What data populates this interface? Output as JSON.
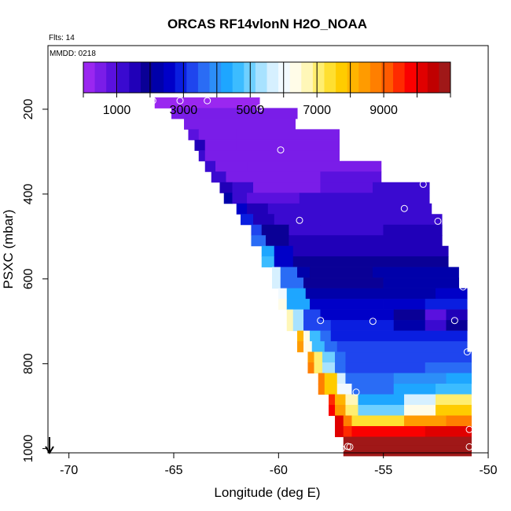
{
  "chart_data": {
    "type": "heatmap",
    "title": "ORCAS RF14vlonN H2O_NOAA",
    "flights_label": "Flts: 14",
    "date_label": "MMDD: 0218",
    "xlabel": "Longitude (deg E)",
    "ylabel": "PSXC (mbar)",
    "xlim": [
      -71,
      -50
    ],
    "ylim": [
      1010,
      50
    ],
    "x_ticks": [
      -70,
      -65,
      -60,
      -55,
      -50
    ],
    "y_ticks": [
      200,
      400,
      600,
      800,
      1000
    ],
    "colorbar": {
      "range": [
        0,
        11000
      ],
      "tick_values": [
        1000,
        3000,
        5000,
        7000,
        9000
      ],
      "tick_labels": [
        "1000",
        "3000",
        "5000",
        "7000",
        "9000"
      ],
      "colors": [
        "#9a27f0",
        "#7a1de8",
        "#5a11de",
        "#3a0ad0",
        "#2000b8",
        "#0a0096",
        "#0000aa",
        "#0000c8",
        "#0a1ee0",
        "#1f45ee",
        "#2a6cf5",
        "#2c8ef8",
        "#1ea6ff",
        "#3cbcff",
        "#6fd0ff",
        "#a8e2ff",
        "#d6f0ff",
        "#f2faff",
        "#fffce8",
        "#fff7b8",
        "#ffee70",
        "#ffdf30",
        "#ffcc00",
        "#ffb400",
        "#ff9b00",
        "#ff7f00",
        "#ff5a00",
        "#ff2a00",
        "#fa0000",
        "#e00000",
        "#c00000",
        "#a01818"
      ]
    },
    "pressure_bins": [
      175,
      200,
      225,
      250,
      275,
      300,
      325,
      350,
      375,
      400,
      425,
      450,
      475,
      500,
      525,
      550,
      575,
      600,
      625,
      650,
      675,
      700,
      725,
      750,
      775,
      800,
      825,
      850,
      875,
      900,
      925,
      950,
      975,
      1000
    ],
    "rows": [
      {
        "p": 185,
        "lon_start": -65.9,
        "lon_end": -60.9,
        "segments": [
          {
            "to": -60.9,
            "value": 300
          }
        ]
      },
      {
        "p": 210,
        "lon_start": -65.1,
        "lon_end": -59.1,
        "segments": [
          {
            "to": -63.8,
            "value": 450
          },
          {
            "to": -59.1,
            "value": 380
          }
        ]
      },
      {
        "p": 235,
        "lon_start": -64.5,
        "lon_end": -59.2,
        "segments": [
          {
            "to": -64.0,
            "value": 500
          },
          {
            "to": -59.2,
            "value": 420
          }
        ]
      },
      {
        "p": 260,
        "lon_start": -64.3,
        "lon_end": -57.1,
        "segments": [
          {
            "to": -63.8,
            "value": 750
          },
          {
            "to": -62.0,
            "value": 480
          },
          {
            "to": -57.1,
            "value": 520
          }
        ]
      },
      {
        "p": 285,
        "lon_start": -64.0,
        "lon_end": -57.1,
        "segments": [
          {
            "to": -63.5,
            "value": 1400
          },
          {
            "to": -62.0,
            "value": 600
          },
          {
            "to": -57.1,
            "value": 500
          }
        ]
      },
      {
        "p": 310,
        "lon_start": -63.8,
        "lon_end": -57.1,
        "segments": [
          {
            "to": -63.5,
            "value": 1300
          },
          {
            "to": -57.1,
            "value": 500
          }
        ]
      },
      {
        "p": 335,
        "lon_start": -63.5,
        "lon_end": -55.1,
        "segments": [
          {
            "to": -63.0,
            "value": 1200
          },
          {
            "to": -61.5,
            "value": 550
          },
          {
            "to": -55.1,
            "value": 650
          }
        ]
      },
      {
        "p": 360,
        "lon_start": -63.2,
        "lon_end": -55.1,
        "segments": [
          {
            "to": -62.5,
            "value": 1100
          },
          {
            "to": -58.0,
            "value": 600
          },
          {
            "to": -55.1,
            "value": 750
          }
        ]
      },
      {
        "p": 385,
        "lon_start": -62.8,
        "lon_end": -52.8,
        "segments": [
          {
            "to": -62.2,
            "value": 1700
          },
          {
            "to": -61.2,
            "value": 1150
          },
          {
            "to": -58.0,
            "value": 650
          },
          {
            "to": -55.5,
            "value": 750
          },
          {
            "to": -52.8,
            "value": 1200
          }
        ]
      },
      {
        "p": 410,
        "lon_start": -62.6,
        "lon_end": -52.8,
        "segments": [
          {
            "to": -62.2,
            "value": 2200
          },
          {
            "to": -61.5,
            "value": 1250
          },
          {
            "to": -59.0,
            "value": 750
          },
          {
            "to": -54.0,
            "value": 1200
          },
          {
            "to": -52.8,
            "value": 1300
          }
        ]
      },
      {
        "p": 435,
        "lon_start": -62.0,
        "lon_end": -52.7,
        "segments": [
          {
            "to": -61.5,
            "value": 2500
          },
          {
            "to": -60.5,
            "value": 1400
          },
          {
            "to": -57.0,
            "value": 1250
          },
          {
            "to": -52.7,
            "value": 1150
          }
        ]
      },
      {
        "p": 460,
        "lon_start": -61.8,
        "lon_end": -52.2,
        "segments": [
          {
            "to": -61.2,
            "value": 2900
          },
          {
            "to": -60.2,
            "value": 1450
          },
          {
            "to": -52.2,
            "value": 1250
          }
        ]
      },
      {
        "p": 485,
        "lon_start": -61.3,
        "lon_end": -52.2,
        "segments": [
          {
            "to": -60.8,
            "value": 3400
          },
          {
            "to": -59.5,
            "value": 1900
          },
          {
            "to": -58.0,
            "value": 1300
          },
          {
            "to": -55.0,
            "value": 1350
          },
          {
            "to": -52.2,
            "value": 1600
          }
        ]
      },
      {
        "p": 510,
        "lon_start": -61.3,
        "lon_end": -52.2,
        "segments": [
          {
            "to": -60.6,
            "value": 3600
          },
          {
            "to": -59.5,
            "value": 1900
          },
          {
            "to": -52.2,
            "value": 1500
          }
        ]
      },
      {
        "p": 535,
        "lon_start": -60.8,
        "lon_end": -51.9,
        "segments": [
          {
            "to": -60.2,
            "value": 4400
          },
          {
            "to": -59.3,
            "value": 2600
          },
          {
            "to": -51.9,
            "value": 1700
          }
        ]
      },
      {
        "p": 560,
        "lon_start": -60.8,
        "lon_end": -51.9,
        "segments": [
          {
            "to": -60.2,
            "value": 4700
          },
          {
            "to": -59.3,
            "value": 2700
          },
          {
            "to": -51.9,
            "value": 1800
          }
        ]
      },
      {
        "p": 585,
        "lon_start": -60.3,
        "lon_end": -51.4,
        "segments": [
          {
            "to": -59.9,
            "value": 5600
          },
          {
            "to": -59.1,
            "value": 3600
          },
          {
            "to": -58.5,
            "value": 2200
          },
          {
            "to": -55.5,
            "value": 1950
          },
          {
            "to": -51.4,
            "value": 2100
          }
        ]
      },
      {
        "p": 610,
        "lon_start": -60.3,
        "lon_end": -51.4,
        "segments": [
          {
            "to": -59.9,
            "value": 5800
          },
          {
            "to": -58.8,
            "value": 3700
          },
          {
            "to": -55.0,
            "value": 2050
          },
          {
            "to": -51.4,
            "value": 2300
          }
        ]
      },
      {
        "p": 635,
        "lon_start": -60.0,
        "lon_end": -51.0,
        "segments": [
          {
            "to": -59.6,
            "value": 6000
          },
          {
            "to": -58.7,
            "value": 4300
          },
          {
            "to": -55.5,
            "value": 2250
          },
          {
            "to": -52.5,
            "value": 2400
          },
          {
            "to": -51.0,
            "value": 2700
          }
        ]
      },
      {
        "p": 660,
        "lon_start": -60.0,
        "lon_end": -51.0,
        "segments": [
          {
            "to": -59.6,
            "value": 6400
          },
          {
            "to": -58.5,
            "value": 4200
          },
          {
            "to": -55.0,
            "value": 2500
          },
          {
            "to": -53.0,
            "value": 2700
          },
          {
            "to": -51.0,
            "value": 2900
          }
        ]
      },
      {
        "p": 685,
        "lon_start": -59.6,
        "lon_end": -51.0,
        "segments": [
          {
            "to": -59.3,
            "value": 6700
          },
          {
            "to": -58.8,
            "value": 5200
          },
          {
            "to": -58.0,
            "value": 3300
          },
          {
            "to": -54.5,
            "value": 2600
          },
          {
            "to": -53.0,
            "value": 2000
          },
          {
            "to": -52.0,
            "value": 1000
          },
          {
            "to": -51.0,
            "value": 1600
          }
        ]
      },
      {
        "p": 710,
        "lon_start": -59.6,
        "lon_end": -51.0,
        "segments": [
          {
            "to": -59.3,
            "value": 6800
          },
          {
            "to": -58.8,
            "value": 5200
          },
          {
            "to": -57.5,
            "value": 3400
          },
          {
            "to": -54.5,
            "value": 2800
          },
          {
            "to": -53.0,
            "value": 2200
          },
          {
            "to": -52.0,
            "value": 1100
          },
          {
            "to": -51.0,
            "value": 1800
          }
        ]
      },
      {
        "p": 735,
        "lon_start": -59.1,
        "lon_end": -51.0,
        "segments": [
          {
            "to": -58.8,
            "value": 8100
          },
          {
            "to": -58.5,
            "value": 6300
          },
          {
            "to": -58.0,
            "value": 4600
          },
          {
            "to": -57.5,
            "value": 3500
          },
          {
            "to": -51.0,
            "value": 3000
          }
        ]
      },
      {
        "p": 760,
        "lon_start": -59.1,
        "lon_end": -51.0,
        "segments": [
          {
            "to": -58.8,
            "value": 8300
          },
          {
            "to": -58.4,
            "value": 6500
          },
          {
            "to": -57.8,
            "value": 4700
          },
          {
            "to": -57.2,
            "value": 3600
          },
          {
            "to": -51.0,
            "value": 3100
          }
        ]
      },
      {
        "p": 785,
        "lon_start": -58.6,
        "lon_end": -50.8,
        "segments": [
          {
            "to": -58.3,
            "value": 8400
          },
          {
            "to": -57.9,
            "value": 7000
          },
          {
            "to": -57.3,
            "value": 4900
          },
          {
            "to": -56.8,
            "value": 3600
          },
          {
            "to": -50.8,
            "value": 3100
          }
        ]
      },
      {
        "p": 810,
        "lon_start": -58.6,
        "lon_end": -50.8,
        "segments": [
          {
            "to": -58.3,
            "value": 8600
          },
          {
            "to": -57.9,
            "value": 7200
          },
          {
            "to": -57.3,
            "value": 5200
          },
          {
            "to": -56.8,
            "value": 3700
          },
          {
            "to": -53.0,
            "value": 3300
          },
          {
            "to": -50.8,
            "value": 3500
          }
        ]
      },
      {
        "p": 835,
        "lon_start": -58.1,
        "lon_end": -50.8,
        "segments": [
          {
            "to": -57.8,
            "value": 8800
          },
          {
            "to": -57.2,
            "value": 7600
          },
          {
            "to": -56.8,
            "value": 5600
          },
          {
            "to": -54.5,
            "value": 3500
          },
          {
            "to": -52.0,
            "value": 3800
          },
          {
            "to": -50.8,
            "value": 4200
          }
        ]
      },
      {
        "p": 860,
        "lon_start": -58.1,
        "lon_end": -50.8,
        "segments": [
          {
            "to": -57.8,
            "value": 8900
          },
          {
            "to": -57.2,
            "value": 7800
          },
          {
            "to": -56.5,
            "value": 6000
          },
          {
            "to": -54.5,
            "value": 3700
          },
          {
            "to": -52.5,
            "value": 4300
          },
          {
            "to": -50.8,
            "value": 4800
          }
        ]
      },
      {
        "p": 885,
        "lon_start": -57.6,
        "lon_end": -50.8,
        "segments": [
          {
            "to": -57.3,
            "value": 9600
          },
          {
            "to": -56.8,
            "value": 8200
          },
          {
            "to": -56.2,
            "value": 6600
          },
          {
            "to": -54.0,
            "value": 4200
          },
          {
            "to": -52.5,
            "value": 5800
          },
          {
            "to": -50.8,
            "value": 7200
          }
        ]
      },
      {
        "p": 910,
        "lon_start": -57.6,
        "lon_end": -50.8,
        "segments": [
          {
            "to": -57.3,
            "value": 9800
          },
          {
            "to": -56.8,
            "value": 8400
          },
          {
            "to": -56.2,
            "value": 6900
          },
          {
            "to": -54.0,
            "value": 5000
          },
          {
            "to": -52.5,
            "value": 6200
          },
          {
            "to": -50.8,
            "value": 7600
          }
        ]
      },
      {
        "p": 935,
        "lon_start": -57.3,
        "lon_end": -50.8,
        "segments": [
          {
            "to": -56.9,
            "value": 10000
          },
          {
            "to": -56.5,
            "value": 8600
          },
          {
            "to": -54.0,
            "value": 7500
          },
          {
            "to": -52.0,
            "value": 8300
          },
          {
            "to": -50.8,
            "value": 8700
          }
        ]
      },
      {
        "p": 960,
        "lon_start": -57.3,
        "lon_end": -50.8,
        "segments": [
          {
            "to": -56.9,
            "value": 10100
          },
          {
            "to": -56.5,
            "value": 9500
          },
          {
            "to": -53.0,
            "value": 9900
          },
          {
            "to": -50.8,
            "value": 10000
          }
        ]
      },
      {
        "p": 985,
        "lon_start": -56.9,
        "lon_end": -50.8,
        "segments": [
          {
            "to": -50.8,
            "value": 10800
          }
        ]
      },
      {
        "p": 1005,
        "lon_start": -56.9,
        "lon_end": -50.8,
        "segments": [
          {
            "to": -50.8,
            "value": 10800
          }
        ]
      }
    ],
    "flight_points": [
      {
        "lon": -66.0,
        "p": 180
      },
      {
        "lon": -64.7,
        "p": 180
      },
      {
        "lon": -63.4,
        "p": 180
      },
      {
        "lon": -60.9,
        "p": 197
      },
      {
        "lon": -59.9,
        "p": 296
      },
      {
        "lon": -53.1,
        "p": 377
      },
      {
        "lon": -54.0,
        "p": 434
      },
      {
        "lon": -59.0,
        "p": 462
      },
      {
        "lon": -52.4,
        "p": 464
      },
      {
        "lon": -51.2,
        "p": 619
      },
      {
        "lon": -58.0,
        "p": 698
      },
      {
        "lon": -55.5,
        "p": 700
      },
      {
        "lon": -51.6,
        "p": 698
      },
      {
        "lon": -51.0,
        "p": 772
      },
      {
        "lon": -56.3,
        "p": 867
      },
      {
        "lon": -50.9,
        "p": 955
      },
      {
        "lon": -57.0,
        "p": 1000
      },
      {
        "lon": -56.6,
        "p": 996
      },
      {
        "lon": -56.7,
        "p": 995
      },
      {
        "lon": -50.9,
        "p": 996
      }
    ]
  }
}
